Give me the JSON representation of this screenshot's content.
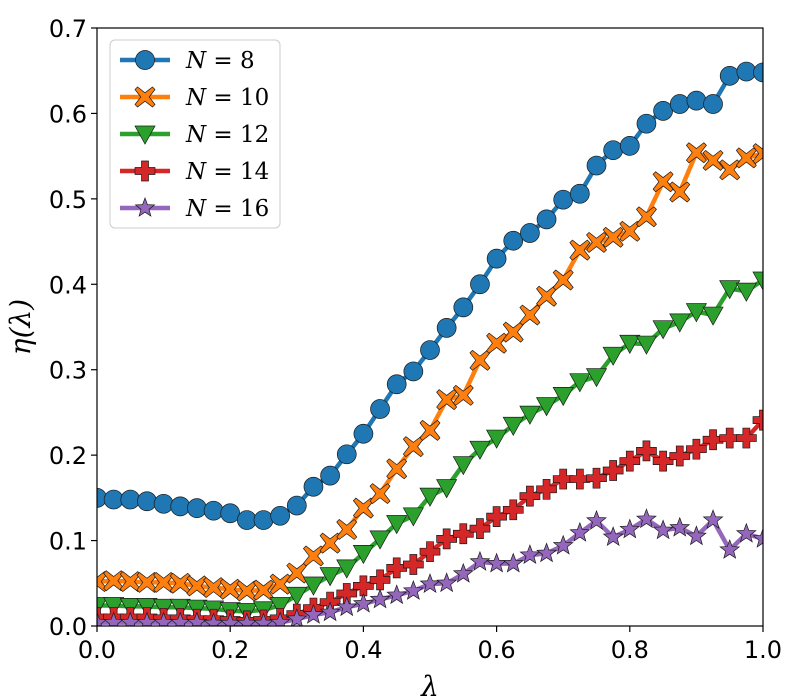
{
  "chart_data": {
    "type": "line",
    "title": "",
    "xlabel": "λ",
    "ylabel": "η(λ)",
    "xlim": [
      0.0,
      1.0
    ],
    "ylim": [
      0.0,
      0.7
    ],
    "xticks": [
      "0.0",
      "0.2",
      "0.4",
      "0.6",
      "0.8",
      "1.0"
    ],
    "yticks": [
      "0.0",
      "0.1",
      "0.2",
      "0.3",
      "0.4",
      "0.5",
      "0.6",
      "0.7"
    ],
    "grid": false,
    "legend_position": "top-left",
    "x": [
      0.0,
      0.025,
      0.05,
      0.075,
      0.1,
      0.125,
      0.15,
      0.175,
      0.2,
      0.225,
      0.25,
      0.275,
      0.3,
      0.325,
      0.35,
      0.375,
      0.4,
      0.425,
      0.45,
      0.475,
      0.5,
      0.525,
      0.55,
      0.575,
      0.6,
      0.625,
      0.65,
      0.675,
      0.7,
      0.725,
      0.75,
      0.775,
      0.8,
      0.825,
      0.85,
      0.875,
      0.9,
      0.925,
      0.95,
      0.975,
      1.0
    ],
    "series": [
      {
        "name": "N = 8",
        "label_var": "N",
        "label_val": "8",
        "color": "#1f77b4",
        "marker": "circle",
        "values": [
          0.15,
          0.148,
          0.148,
          0.146,
          0.143,
          0.14,
          0.138,
          0.135,
          0.132,
          0.124,
          0.124,
          0.129,
          0.141,
          0.163,
          0.176,
          0.201,
          0.225,
          0.254,
          0.283,
          0.298,
          0.323,
          0.349,
          0.373,
          0.4,
          0.43,
          0.451,
          0.46,
          0.476,
          0.499,
          0.506,
          0.539,
          0.557,
          0.562,
          0.588,
          0.603,
          0.611,
          0.615,
          0.611,
          0.644,
          0.649,
          0.648
        ]
      },
      {
        "name": "N = 10",
        "label_var": "N",
        "label_val": "10",
        "color": "#ff7f0e",
        "marker": "x",
        "values": [
          0.052,
          0.053,
          0.052,
          0.051,
          0.051,
          0.05,
          0.047,
          0.045,
          0.043,
          0.041,
          0.042,
          0.049,
          0.062,
          0.082,
          0.097,
          0.113,
          0.138,
          0.155,
          0.184,
          0.21,
          0.229,
          0.265,
          0.27,
          0.311,
          0.331,
          0.344,
          0.364,
          0.386,
          0.405,
          0.44,
          0.449,
          0.455,
          0.462,
          0.479,
          0.52,
          0.508,
          0.554,
          0.545,
          0.534,
          0.548,
          0.553
        ]
      },
      {
        "name": "N = 12",
        "label_var": "N",
        "label_val": "12",
        "color": "#2ca02c",
        "marker": "triangle-down",
        "values": [
          0.024,
          0.024,
          0.023,
          0.023,
          0.022,
          0.022,
          0.021,
          0.02,
          0.018,
          0.017,
          0.019,
          0.024,
          0.036,
          0.048,
          0.059,
          0.068,
          0.085,
          0.102,
          0.12,
          0.129,
          0.152,
          0.162,
          0.189,
          0.207,
          0.22,
          0.235,
          0.248,
          0.258,
          0.27,
          0.286,
          0.292,
          0.317,
          0.331,
          0.33,
          0.348,
          0.356,
          0.368,
          0.364,
          0.395,
          0.392,
          0.405
        ]
      },
      {
        "name": "N = 14",
        "label_var": "N",
        "label_val": "14",
        "color": "#d62728",
        "marker": "plus",
        "values": [
          0.01,
          0.01,
          0.01,
          0.01,
          0.009,
          0.009,
          0.008,
          0.008,
          0.007,
          0.006,
          0.007,
          0.009,
          0.014,
          0.021,
          0.028,
          0.038,
          0.047,
          0.054,
          0.068,
          0.072,
          0.087,
          0.102,
          0.108,
          0.114,
          0.128,
          0.136,
          0.152,
          0.16,
          0.172,
          0.172,
          0.173,
          0.182,
          0.193,
          0.205,
          0.193,
          0.199,
          0.207,
          0.218,
          0.22,
          0.22,
          0.241
        ]
      },
      {
        "name": "N = 16",
        "label_var": "N",
        "label_val": "16",
        "color": "#9467bd",
        "marker": "star",
        "values": [
          0.004,
          0.004,
          0.004,
          0.004,
          0.004,
          0.004,
          0.004,
          0.003,
          0.003,
          0.003,
          0.003,
          0.004,
          0.008,
          0.013,
          0.016,
          0.022,
          0.026,
          0.031,
          0.036,
          0.041,
          0.049,
          0.05,
          0.061,
          0.075,
          0.073,
          0.073,
          0.083,
          0.085,
          0.094,
          0.109,
          0.123,
          0.104,
          0.113,
          0.125,
          0.112,
          0.115,
          0.105,
          0.124,
          0.089,
          0.108,
          0.102
        ]
      }
    ]
  }
}
